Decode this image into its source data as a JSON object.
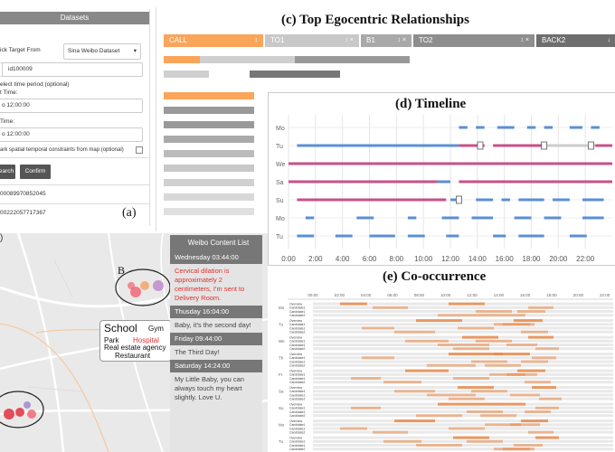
{
  "panel_a": {
    "dataset_header": "Datasets",
    "pick_target_label": "ick Target From",
    "dataset_select": "Sina Weibo Dataset",
    "id_value": "id100009",
    "time_period_label": "elect time period (optional)",
    "start_time_label": "t Time:",
    "start_value": "o 12:00:00",
    "end_time_label": "Time:",
    "end_value": "o 12:00:00",
    "spatial_label": "ark spatial temporal constraints from map (optional)",
    "search_btn": "earch",
    "confirm_btn": "Confirm",
    "result_1": "00089970852045",
    "result_2": "00222057717367",
    "label": "(a)"
  },
  "panel_c": {
    "title": "(c) Top Egocentric Relationships",
    "tabs": [
      {
        "label": "CALL",
        "color": "#f9a55a",
        "icons": "↕"
      },
      {
        "label": "TO1",
        "color": "#c8c8c8",
        "icons": "↕ ×"
      },
      {
        "label": "B1",
        "color": "#a9a9a9",
        "icons": "↕ ×"
      },
      {
        "label": "TO2",
        "color": "#8e8e8e",
        "icons": "↕ ×"
      },
      {
        "label": "BACK2",
        "color": "#6e6e6e",
        "icons": "↓"
      }
    ]
  },
  "panel_d": {
    "title": "(d) Timeline",
    "rows": [
      "Mo",
      "Tu",
      "We",
      "Sa",
      "Su",
      "Mo",
      "Tu"
    ],
    "ticks": [
      "0:00",
      "2:00",
      "4:00",
      "6:00",
      "8:00",
      "10:00",
      "12:00",
      "14:00",
      "16:00",
      "18:00",
      "20:00",
      "22:00"
    ]
  },
  "panel_e": {
    "title": "(e) Co-occurrence",
    "ticks": [
      "00:00",
      "02:00",
      "04:00",
      "06:00",
      "08:00",
      "10:00",
      "12:00",
      "14:00",
      "16:00",
      "18:00",
      "20:00",
      "22:00"
    ],
    "days": [
      "Mo",
      "Tu",
      "We",
      "Th",
      "Fr",
      "Sa",
      "Su",
      "Mo",
      "Tu"
    ],
    "sub_rows": [
      "Overview",
      "Candidate1",
      "Candidate1",
      "Candidate2"
    ]
  },
  "map": {
    "label_b": "B",
    "school": "School",
    "gym": "Gym",
    "park": "Park",
    "hospital": "Hospital",
    "real_estate": "Real estate agency",
    "restaurant": "Restaurant"
  },
  "content_list": {
    "header": "Weibo Content List",
    "items": [
      {
        "time": "Wednesday 03:44:00",
        "text": "Cervical dilation is approximately 2 centimeters, I'm sent to Delivery Room.",
        "highlight": true
      },
      {
        "time": "Thusday 16:04:00",
        "text": "Baby, it's the second day!",
        "highlight": false
      },
      {
        "time": "Friday 09:44:00",
        "text": "The Third Day!",
        "highlight": false
      },
      {
        "time": "Saturday 14:24:00",
        "text": "My Little Baby, you can always touch my heart slightly. Love U.",
        "highlight": false
      }
    ]
  }
}
